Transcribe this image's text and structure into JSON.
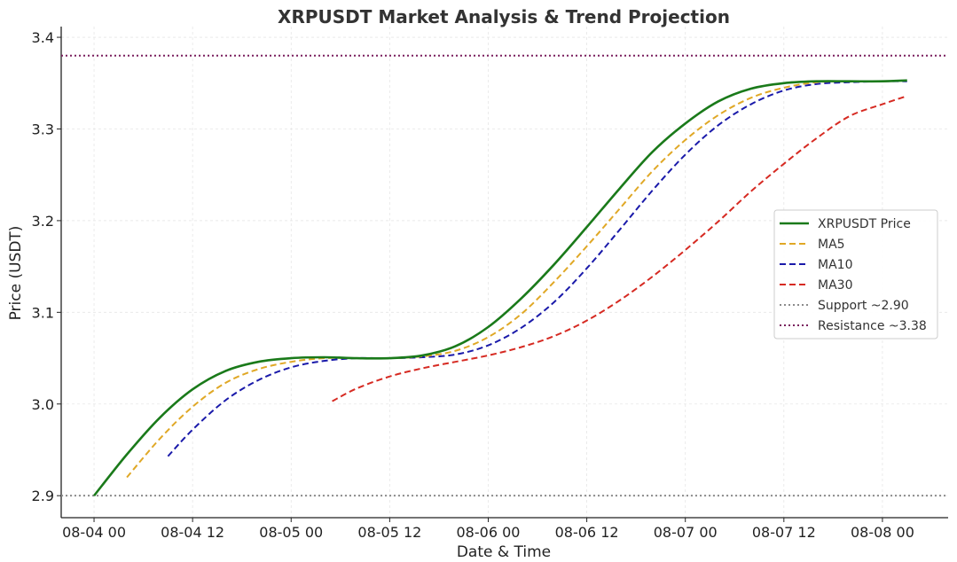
{
  "chart_data": {
    "type": "line",
    "title": "XRPUSDT Market Analysis & Trend Projection",
    "xlabel": "Date & Time",
    "ylabel": "Price (USDT)",
    "x_unit": "hours",
    "x_range": [
      -4,
      92
    ],
    "ylim": [
      2.876,
      3.4
    ],
    "x_ticks": [
      {
        "x": 0,
        "label": "08-04 00"
      },
      {
        "x": 12,
        "label": "08-04 12"
      },
      {
        "x": 24,
        "label": "08-05 00"
      },
      {
        "x": 36,
        "label": "08-05 12"
      },
      {
        "x": 48,
        "label": "08-06 00"
      },
      {
        "x": 60,
        "label": "08-06 12"
      },
      {
        "x": 72,
        "label": "08-07 00"
      },
      {
        "x": 84,
        "label": "08-07 12"
      },
      {
        "x": 96,
        "label": "08-08 00"
      }
    ],
    "y_ticks": [
      2.9,
      3.0,
      3.1,
      3.2,
      3.3,
      3.4
    ],
    "y_tick_labels": [
      "2.9",
      "3.0",
      "3.1",
      "3.2",
      "3.3",
      "3.4"
    ],
    "grid": true,
    "legend_position": "center-right",
    "series": [
      {
        "name": "XRPUSDT Price",
        "color": "#1a7a1a",
        "dash": "solid",
        "points": [
          [
            0,
            2.9
          ],
          [
            4,
            2.945
          ],
          [
            8,
            2.985
          ],
          [
            12,
            3.016
          ],
          [
            16,
            3.036
          ],
          [
            20,
            3.046
          ],
          [
            24,
            3.05
          ],
          [
            28,
            3.051
          ],
          [
            32,
            3.05
          ],
          [
            36,
            3.05
          ],
          [
            40,
            3.053
          ],
          [
            44,
            3.063
          ],
          [
            48,
            3.084
          ],
          [
            52,
            3.115
          ],
          [
            56,
            3.152
          ],
          [
            60,
            3.193
          ],
          [
            64,
            3.235
          ],
          [
            68,
            3.275
          ],
          [
            72,
            3.306
          ],
          [
            76,
            3.33
          ],
          [
            80,
            3.344
          ],
          [
            84,
            3.35
          ],
          [
            88,
            3.352
          ],
          [
            92,
            3.352
          ],
          [
            96,
            3.352
          ],
          [
            99,
            3.353
          ]
        ]
      },
      {
        "name": "MA5",
        "color": "#e0a826",
        "dash": "dashed",
        "points": [
          [
            4,
            2.92
          ],
          [
            8,
            2.962
          ],
          [
            12,
            2.997
          ],
          [
            16,
            3.023
          ],
          [
            20,
            3.038
          ],
          [
            24,
            3.046
          ],
          [
            28,
            3.05
          ],
          [
            32,
            3.05
          ],
          [
            36,
            3.05
          ],
          [
            40,
            3.052
          ],
          [
            44,
            3.058
          ],
          [
            48,
            3.073
          ],
          [
            52,
            3.098
          ],
          [
            56,
            3.133
          ],
          [
            60,
            3.172
          ],
          [
            64,
            3.213
          ],
          [
            68,
            3.254
          ],
          [
            72,
            3.288
          ],
          [
            76,
            3.315
          ],
          [
            80,
            3.334
          ],
          [
            84,
            3.345
          ],
          [
            88,
            3.351
          ],
          [
            92,
            3.352
          ],
          [
            96,
            3.352
          ],
          [
            99,
            3.353
          ]
        ]
      },
      {
        "name": "MA10",
        "color": "#1a1aaa",
        "dash": "dashed",
        "points": [
          [
            9,
            2.943
          ],
          [
            12,
            2.972
          ],
          [
            16,
            3.004
          ],
          [
            20,
            3.026
          ],
          [
            24,
            3.04
          ],
          [
            28,
            3.047
          ],
          [
            32,
            3.05
          ],
          [
            36,
            3.05
          ],
          [
            40,
            3.051
          ],
          [
            44,
            3.054
          ],
          [
            48,
            3.064
          ],
          [
            52,
            3.083
          ],
          [
            56,
            3.111
          ],
          [
            60,
            3.148
          ],
          [
            64,
            3.19
          ],
          [
            68,
            3.233
          ],
          [
            72,
            3.272
          ],
          [
            76,
            3.304
          ],
          [
            80,
            3.327
          ],
          [
            84,
            3.342
          ],
          [
            88,
            3.349
          ],
          [
            92,
            3.351
          ],
          [
            96,
            3.352
          ],
          [
            99,
            3.352
          ]
        ]
      },
      {
        "name": "MA30",
        "color": "#d62a22",
        "dash": "dashed",
        "points": [
          [
            29,
            3.003
          ],
          [
            32,
            3.017
          ],
          [
            36,
            3.03
          ],
          [
            40,
            3.039
          ],
          [
            44,
            3.046
          ],
          [
            48,
            3.053
          ],
          [
            52,
            3.062
          ],
          [
            56,
            3.074
          ],
          [
            60,
            3.091
          ],
          [
            64,
            3.113
          ],
          [
            68,
            3.139
          ],
          [
            72,
            3.168
          ],
          [
            76,
            3.199
          ],
          [
            80,
            3.232
          ],
          [
            84,
            3.262
          ],
          [
            88,
            3.29
          ],
          [
            92,
            3.314
          ],
          [
            96,
            3.327
          ],
          [
            99,
            3.336
          ]
        ]
      },
      {
        "name": "Support ~2.90",
        "color": "#8c8c8c",
        "dash": "dotted",
        "points": [
          [
            -4,
            2.9
          ],
          [
            104,
            2.9
          ]
        ]
      },
      {
        "name": "Resistance ~3.38",
        "color": "#7a1f5e",
        "dash": "dotted",
        "points": [
          [
            -4,
            3.38
          ],
          [
            104,
            3.38
          ]
        ]
      }
    ]
  }
}
